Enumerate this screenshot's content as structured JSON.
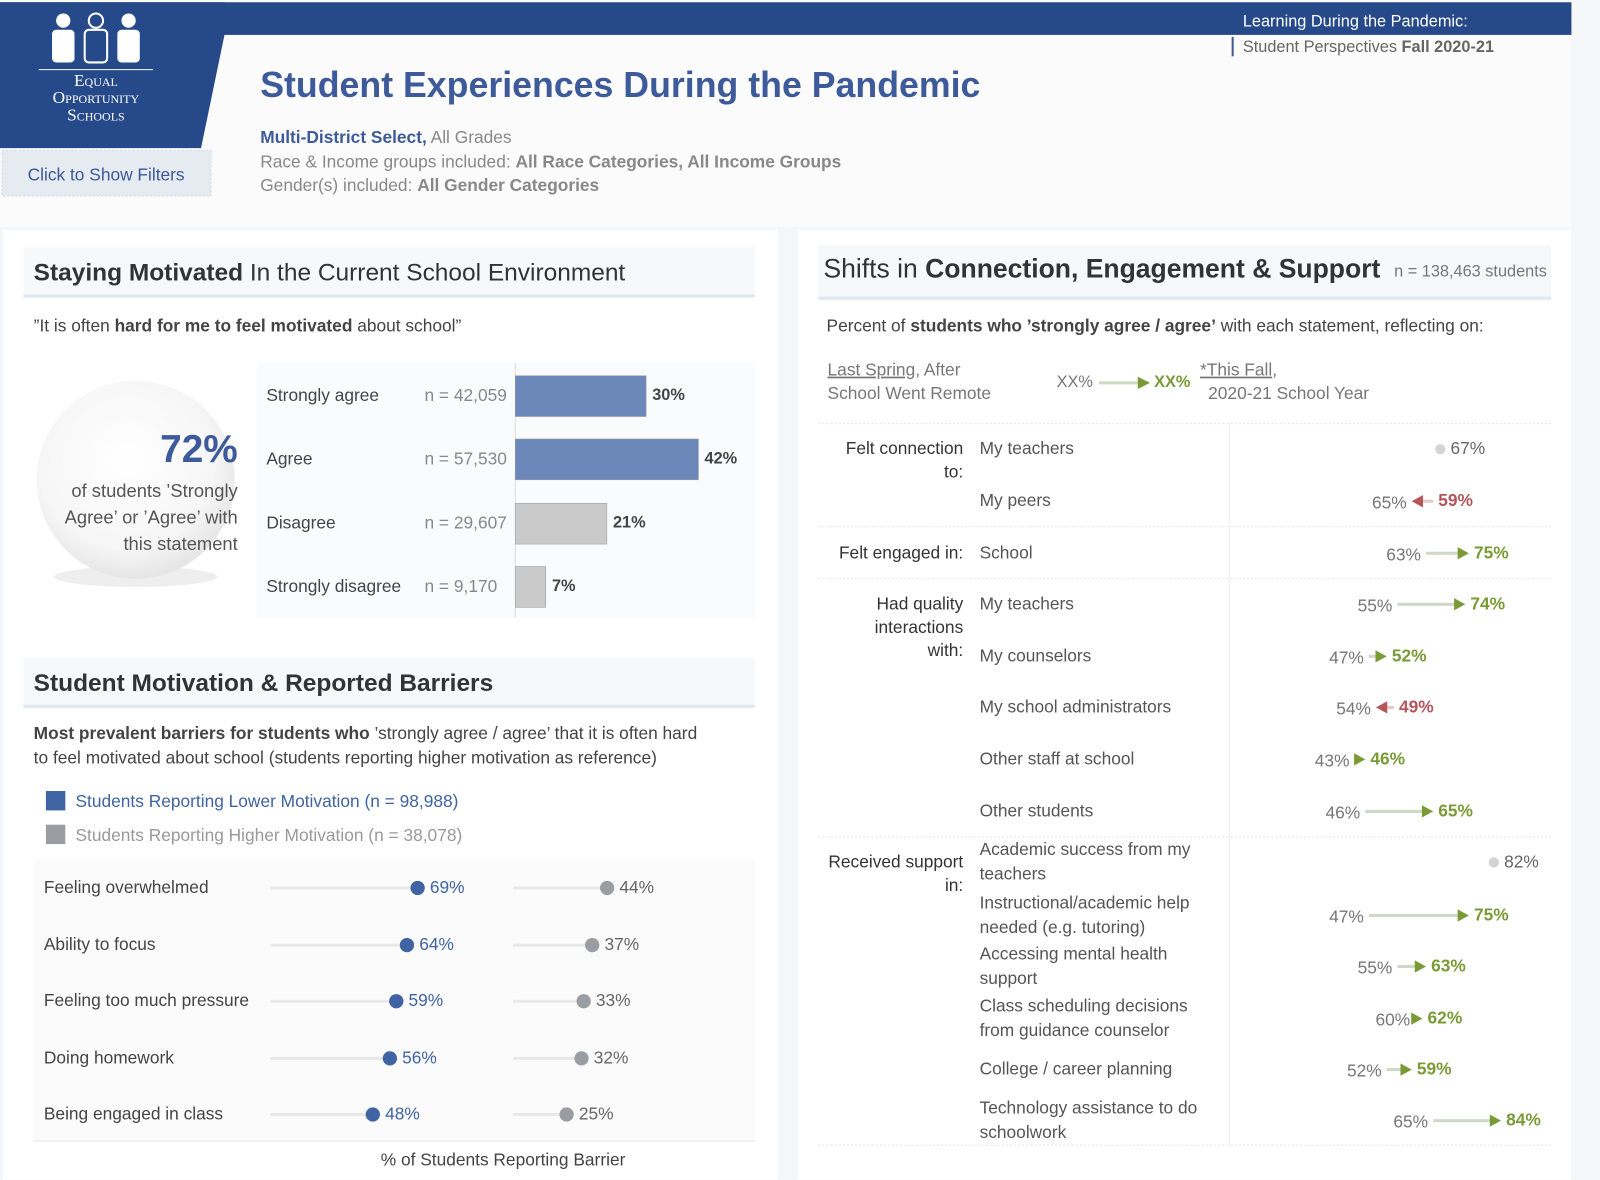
{
  "header": {
    "logo": [
      "Equal",
      "Opportunity",
      "Schools"
    ],
    "filter_button": "Click to Show Filters",
    "report_title": "Learning During the Pandemic:",
    "report_subtitle": "Student Perspectives ",
    "report_term": "Fall 2020-21",
    "title": "Student Experiences During the Pandemic",
    "district": "Multi-District Select,",
    "grades": " All Grades",
    "race_label": "Race & Income groups included: ",
    "race_value": "All Race Categories, All Income Groups",
    "gender_label": "Gender(s) included: ",
    "gender_value": "All Gender Categories"
  },
  "chart_data": [
    {
      "type": "bar",
      "title": "Staying Motivated",
      "title_rest": " In the Current School Environment",
      "quote": [
        "”It is often ",
        "hard for me to feel motivated",
        " about school”"
      ],
      "summary_value": 72,
      "summary_label": "72%",
      "summary_text": [
        "of students ’Strongly",
        "Agree’ or ’Agree’ with",
        "this statement"
      ],
      "categories": [
        "Strongly agree",
        "Agree",
        "Disagree",
        "Strongly disagree"
      ],
      "n_labels": [
        "n = 42,059",
        "n = 57,530",
        "n = 29,607",
        "n = 9,170"
      ],
      "values": [
        30,
        42,
        21,
        7
      ],
      "value_labels": [
        "30%",
        "42%",
        "21%",
        "7%"
      ],
      "colors": [
        "#6c87b9",
        "#6c87b9",
        "#cacaca",
        "#cacaca"
      ],
      "xlim": [
        0,
        55
      ]
    },
    {
      "type": "dot",
      "title": "Student Motivation & Reported Barriers",
      "subtitle_bold": "Most prevalent barriers for students who",
      "subtitle": [
        " ’strongly agree / agree’ that it is often hard",
        "to feel motivated about school (students reporting higher motivation as reference)"
      ],
      "categories": [
        "Feeling overwhelmed",
        "Ability to focus",
        "Feeling too much pressure",
        "Doing homework",
        "Being engaged in class"
      ],
      "series": [
        {
          "name": "Students Reporting Lower Motivation (n = 98,988)",
          "color": "#3f63a3",
          "values": [
            69,
            64,
            59,
            56,
            48
          ],
          "value_labels": [
            "69%",
            "64%",
            "59%",
            "56%",
            "48%"
          ]
        },
        {
          "name": "Students Reporting Higher Motivation (n = 38,078)",
          "color": "#9a9ea3",
          "values": [
            44,
            37,
            33,
            32,
            25
          ],
          "value_labels": [
            "44%",
            "37%",
            "33%",
            "32%",
            "25%"
          ]
        }
      ],
      "xlabel": "% of Students Reporting Barrier",
      "xlim": [
        0,
        110
      ]
    },
    {
      "type": "dumbbell",
      "title": "Shifts in ",
      "title_bold": "Connection, Engagement & Support",
      "n_label": "n = 138,463 students",
      "intro": [
        "Percent of ",
        "students who ’strongly agree / agree’",
        " with each statement, reflecting on:"
      ],
      "spring_label": "Last Spring",
      "spring_label_rest": ", After",
      "spring_label_line2": "School Went Remote",
      "legend_from": "XX%",
      "legend_to": "XX%",
      "fall_label": "*This Fall",
      "fall_label_rest": ",",
      "fall_label_line2": "2020-21 School Year",
      "increase_color": "#7a9a36",
      "decrease_color": "#b5555a",
      "neutral_color": "#d3d3d3",
      "xlim": [
        0,
        100
      ],
      "groups": [
        {
          "label": [
            "Felt connection",
            "to:"
          ],
          "categories": [
            [
              "My teachers"
            ],
            [
              "My peers"
            ]
          ],
          "spring": [
            null,
            65
          ],
          "fall": [
            67,
            59
          ],
          "spring_labels": [
            null,
            "65%"
          ],
          "fall_labels": [
            "67%",
            "59%"
          ]
        },
        {
          "label": [
            "Felt engaged in:"
          ],
          "categories": [
            [
              "School"
            ]
          ],
          "spring": [
            63
          ],
          "fall": [
            75
          ],
          "spring_labels": [
            "63%"
          ],
          "fall_labels": [
            "75%"
          ]
        },
        {
          "label": [
            "Had quality",
            "interactions",
            "with:"
          ],
          "categories": [
            [
              "My teachers"
            ],
            [
              "My counselors"
            ],
            [
              "My school administrators"
            ],
            [
              "Other staff at school"
            ],
            [
              "Other students"
            ]
          ],
          "spring": [
            55,
            47,
            54,
            43,
            46
          ],
          "fall": [
            74,
            52,
            49,
            46,
            65
          ],
          "spring_labels": [
            "55%",
            "47%",
            "54%",
            "43%",
            "46%"
          ],
          "fall_labels": [
            "74%",
            "52%",
            "49%",
            "46%",
            "65%"
          ]
        },
        {
          "label": [
            "Received support",
            "in:"
          ],
          "categories": [
            [
              "Academic success from my",
              "teachers"
            ],
            [
              "Instructional/academic help",
              "needed (e.g. tutoring)"
            ],
            [
              "Accessing mental health",
              "support"
            ],
            [
              "Class scheduling decisions",
              "from guidance counselor"
            ],
            [
              "College / career planning"
            ],
            [
              "Technology assistance to do",
              "schoolwork"
            ]
          ],
          "spring": [
            null,
            47,
            55,
            60,
            52,
            65
          ],
          "fall": [
            82,
            75,
            63,
            62,
            59,
            84
          ],
          "spring_labels": [
            null,
            "47%",
            "55%",
            "60%",
            "52%",
            "65%"
          ],
          "fall_labels": [
            "82%",
            "75%",
            "63%",
            "62%",
            "59%",
            "84%"
          ]
        }
      ]
    }
  ]
}
